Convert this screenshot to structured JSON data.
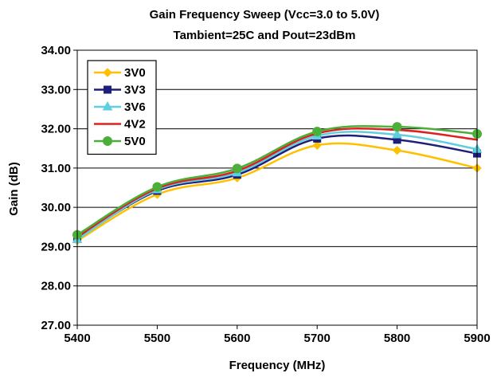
{
  "chart_data": {
    "type": "line",
    "title": "Gain Frequency Sweep (Vcc=3.0 to 5.0V)",
    "subtitle": "Tambient=25C and Pout=23dBm",
    "xlabel": "Frequency (MHz)",
    "ylabel": "Gain (dB)",
    "x": [
      5400,
      5500,
      5600,
      5700,
      5800,
      5900
    ],
    "x_tick_labels": [
      "5400",
      "5500",
      "5600",
      "5700",
      "5800",
      "5900"
    ],
    "y_tick_labels": [
      "27.00",
      "28.00",
      "29.00",
      "30.00",
      "31.00",
      "32.00",
      "33.00",
      "34.00"
    ],
    "xlim": [
      5400,
      5900
    ],
    "ylim": [
      27,
      34
    ],
    "grid": "horizontal",
    "legend_position": "top-left",
    "series": [
      {
        "name": "3V0",
        "color": "#FFC000",
        "marker": "diamond",
        "values": [
          29.15,
          30.33,
          30.75,
          31.58,
          31.45,
          31.0
        ]
      },
      {
        "name": "3V3",
        "color": "#1F1F7A",
        "marker": "square",
        "values": [
          29.2,
          30.42,
          30.83,
          31.75,
          31.72,
          31.37
        ]
      },
      {
        "name": "3V6",
        "color": "#5FCFE0",
        "marker": "triangle",
        "values": [
          29.18,
          30.45,
          30.88,
          31.82,
          31.85,
          31.48
        ]
      },
      {
        "name": "4V2",
        "color": "#E02020",
        "marker": "none",
        "values": [
          29.25,
          30.48,
          30.93,
          31.88,
          31.97,
          31.72
        ]
      },
      {
        "name": "5V0",
        "color": "#4CAF3A",
        "marker": "circle",
        "values": [
          29.3,
          30.52,
          30.99,
          31.93,
          32.05,
          31.87
        ]
      }
    ]
  }
}
